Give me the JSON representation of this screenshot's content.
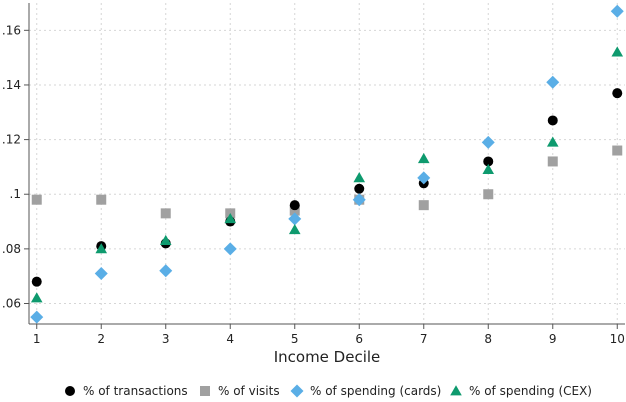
{
  "chart_data": {
    "type": "scatter",
    "xlabel": "Income Decile",
    "ylabel": "",
    "x": [
      1,
      2,
      3,
      4,
      5,
      6,
      7,
      8,
      9,
      10
    ],
    "xlim": [
      0.88,
      10.12
    ],
    "ylim": [
      0.0525,
      0.17
    ],
    "x_ticks": [
      1,
      2,
      3,
      4,
      5,
      6,
      7,
      8,
      9,
      10
    ],
    "x_tick_labels": [
      "1",
      "2",
      "3",
      "4",
      "5",
      "6",
      "7",
      "8",
      "9",
      "10"
    ],
    "y_ticks": [
      0.06,
      0.08,
      0.1,
      0.12,
      0.14,
      0.16
    ],
    "y_tick_labels": [
      ".06",
      ".08",
      ".1",
      ".12",
      ".14",
      ".16"
    ],
    "grid": true,
    "legend_position": "bottom",
    "series": [
      {
        "name": "% of transactions",
        "marker": "circle",
        "color": "#000000",
        "values": [
          0.068,
          0.081,
          0.082,
          0.09,
          0.096,
          0.102,
          0.104,
          0.112,
          0.127,
          0.137
        ]
      },
      {
        "name": "% of visits",
        "marker": "square",
        "color": "#a0a0a0",
        "values": [
          0.098,
          0.098,
          0.093,
          0.093,
          0.094,
          0.098,
          0.096,
          0.1,
          0.112,
          0.116
        ]
      },
      {
        "name": "% of spending (cards)",
        "marker": "diamond",
        "color": "#5aaee6",
        "values": [
          0.055,
          0.071,
          0.072,
          0.08,
          0.091,
          0.098,
          0.106,
          0.119,
          0.141,
          0.167
        ]
      },
      {
        "name": "% of spending (CEX)",
        "marker": "triangle",
        "color": "#0e9a6e",
        "values": [
          0.062,
          0.08,
          0.083,
          0.091,
          0.087,
          0.106,
          0.113,
          0.109,
          0.119,
          0.152
        ]
      }
    ]
  }
}
